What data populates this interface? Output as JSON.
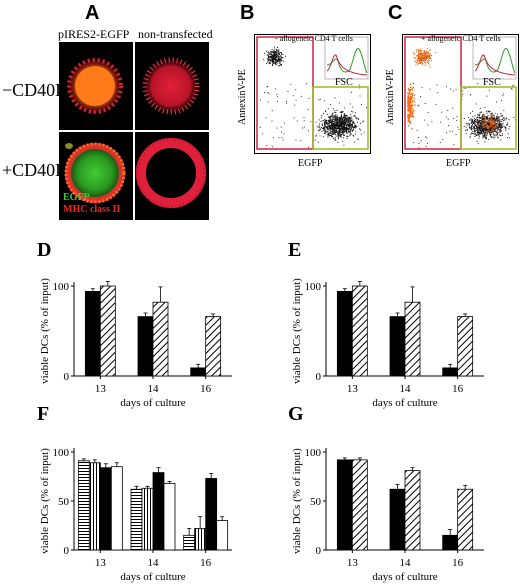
{
  "panelA": {
    "letter": "A",
    "col_labels": [
      "pIRES2-EGFP",
      "non-transfected"
    ],
    "row_labels": [
      "−CD40L",
      "+CD40L"
    ],
    "legend": [
      {
        "text": "EGFP",
        "color": "#33cc33"
      },
      {
        "text": "MHC class II",
        "color": "#ee2222"
      }
    ]
  },
  "panelB": {
    "letter": "B",
    "title": "- allogeneic CD4 T cells",
    "ylabel": "AnnexinV-PE",
    "xlabel": "EGFP",
    "inset_label": "FSC"
  },
  "panelC": {
    "letter": "C",
    "title": "+ allogeneic CD4 T cells",
    "ylabel": "AnnexinV-PE",
    "xlabel": "EGFP",
    "inset_label": "FSC"
  },
  "colors": {
    "black": "#000000",
    "red_gate": "#cc2244",
    "green_gate": "#99bb22"
  },
  "chart_data": [
    {
      "letter": "D",
      "type": "bar",
      "ylabel": "viable DCs (% of input)",
      "xlabel": "days of culture",
      "categories": [
        "13",
        "14",
        "16"
      ],
      "ylim": [
        0,
        100
      ],
      "yticks": [
        0,
        100
      ],
      "series": [
        {
          "fill": "black",
          "values": [
            94,
            66,
            9
          ],
          "errors": [
            3,
            4,
            4
          ]
        },
        {
          "fill": "hatch-diag",
          "values": [
            100,
            82,
            66
          ],
          "errors": [
            5,
            17,
            3
          ]
        }
      ]
    },
    {
      "letter": "E",
      "type": "bar",
      "ylabel": "viable DCs (% of input)",
      "xlabel": "days of culture",
      "categories": [
        "13",
        "14",
        "16"
      ],
      "ylim": [
        0,
        100
      ],
      "yticks": [
        0,
        100
      ],
      "series": [
        {
          "fill": "black",
          "values": [
            94,
            66,
            9
          ],
          "errors": [
            3,
            4,
            4
          ]
        },
        {
          "fill": "hatch-diag",
          "values": [
            100,
            82,
            66
          ],
          "errors": [
            5,
            17,
            3
          ]
        }
      ]
    },
    {
      "letter": "F",
      "type": "bar",
      "ylabel": "viable DCs (% of input)",
      "xlabel": "days of culture",
      "categories": [
        "13",
        "14",
        "16"
      ],
      "ylim": [
        0,
        100
      ],
      "yticks": [
        0,
        50,
        100
      ],
      "series": [
        {
          "fill": "hatch-horiz",
          "values": [
            91,
            62,
            15
          ],
          "errors": [
            2,
            3,
            7
          ]
        },
        {
          "fill": "hatch-vert",
          "values": [
            89,
            63,
            22
          ],
          "errors": [
            3,
            2,
            12
          ]
        },
        {
          "fill": "black",
          "values": [
            84,
            79,
            73
          ],
          "errors": [
            4,
            5,
            5
          ]
        },
        {
          "fill": "white",
          "values": [
            85,
            68,
            30
          ],
          "errors": [
            4,
            2,
            4
          ]
        }
      ]
    },
    {
      "letter": "G",
      "type": "bar",
      "ylabel": "viable DCs (% of input)",
      "xlabel": "days of culture",
      "categories": [
        "13",
        "14",
        "16"
      ],
      "ylim": [
        0,
        100
      ],
      "yticks": [
        0,
        50,
        100
      ],
      "series": [
        {
          "fill": "black",
          "values": [
            92,
            62,
            15
          ],
          "errors": [
            2,
            5,
            6
          ]
        },
        {
          "fill": "hatch-diag",
          "values": [
            92,
            81,
            62
          ],
          "errors": [
            2,
            3,
            4
          ]
        }
      ]
    }
  ]
}
